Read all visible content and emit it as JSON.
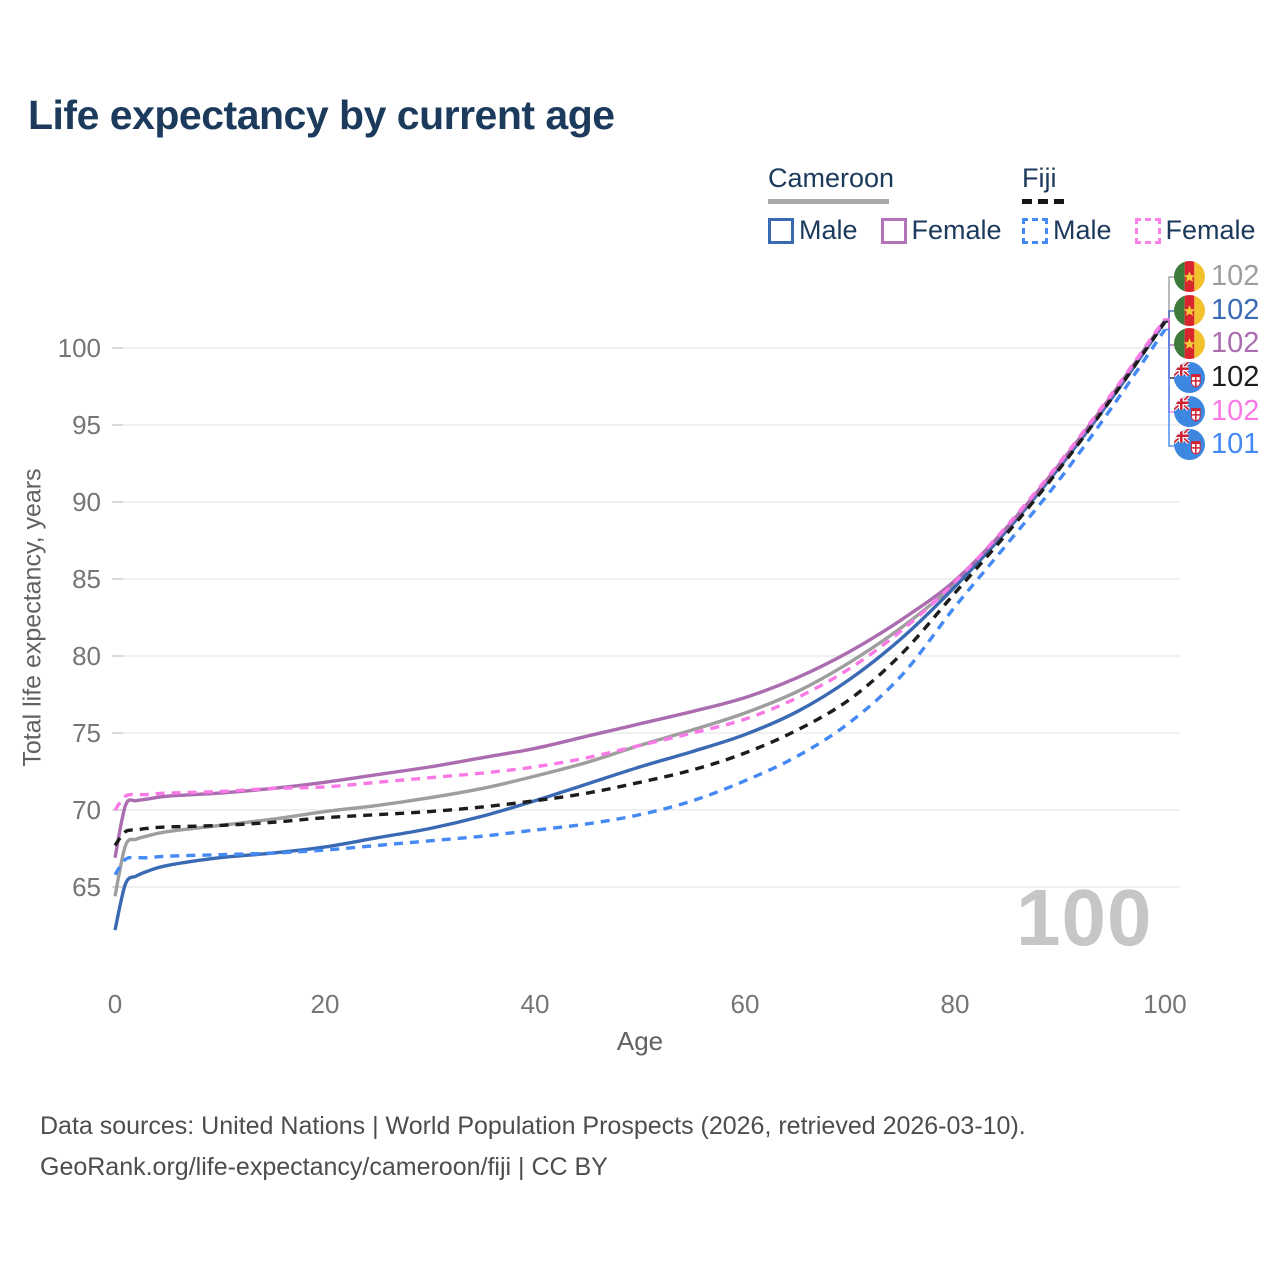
{
  "title": "Life expectancy by current age",
  "legend": {
    "groups": [
      {
        "label": "Cameroon",
        "line_style": "solid",
        "items": [
          {
            "label": "Male",
            "color": "#3b6ab4"
          },
          {
            "label": "Female",
            "color": "#b273bb"
          }
        ]
      },
      {
        "label": "Fiji",
        "line_style": "dashed",
        "items": [
          {
            "label": "Male",
            "color": "#4489f4"
          },
          {
            "label": "Female",
            "color": "#fb80e8"
          }
        ]
      }
    ]
  },
  "chart_data": {
    "type": "line",
    "xlabel": "Age",
    "ylabel": "Total life expectancy, years",
    "xticks": [
      0,
      20,
      40,
      60,
      80,
      100
    ],
    "yticks": [
      65,
      70,
      75,
      80,
      85,
      90,
      95,
      100
    ],
    "xlim": [
      0,
      100
    ],
    "ylim": [
      62,
      103.5
    ],
    "grid": "horizontal",
    "legend_position": "top-right",
    "hover_age_label": "100",
    "ages": [
      0,
      1,
      2,
      3,
      5,
      10,
      15,
      20,
      25,
      30,
      35,
      40,
      45,
      50,
      55,
      60,
      65,
      70,
      75,
      80,
      85,
      90,
      95,
      100
    ],
    "series": [
      {
        "id": "cameroon-total",
        "name": "Cameroon Total",
        "color": "#9e9e9e",
        "dash": "solid",
        "values": [
          64.4,
          67.7,
          68.1,
          68.3,
          68.6,
          69.0,
          69.4,
          69.9,
          70.3,
          70.8,
          71.4,
          72.2,
          73.1,
          74.2,
          75.2,
          76.3,
          77.7,
          79.6,
          81.9,
          84.7,
          88.3,
          92.4,
          96.9,
          101.7
        ]
      },
      {
        "id": "cameroon-male",
        "name": "Cameroon Male",
        "color": "#3b6ab4",
        "dash": "solid",
        "values": [
          62.2,
          65.2,
          65.7,
          66.0,
          66.4,
          66.9,
          67.2,
          67.6,
          68.2,
          68.8,
          69.6,
          70.6,
          71.7,
          72.8,
          73.8,
          74.9,
          76.4,
          78.5,
          81.2,
          84.5,
          88.2,
          92.3,
          96.8,
          101.7
        ]
      },
      {
        "id": "cameroon-female",
        "name": "Cameroon Female",
        "color": "#ab6cb0",
        "dash": "solid",
        "values": [
          66.9,
          70.3,
          70.6,
          70.7,
          70.9,
          71.1,
          71.4,
          71.8,
          72.3,
          72.8,
          73.4,
          74.0,
          74.8,
          75.6,
          76.4,
          77.3,
          78.6,
          80.3,
          82.4,
          84.9,
          88.4,
          92.5,
          97.0,
          101.8
        ]
      },
      {
        "id": "fiji-total",
        "name": "Fiji Total",
        "color": "#1c1c1c",
        "dash": "dashed",
        "values": [
          67.7,
          68.6,
          68.7,
          68.8,
          68.9,
          69.0,
          69.2,
          69.5,
          69.7,
          69.9,
          70.2,
          70.6,
          71.1,
          71.8,
          72.6,
          73.7,
          75.2,
          77.2,
          80.2,
          84.1,
          88.0,
          92.2,
          96.8,
          101.7
        ]
      },
      {
        "id": "fiji-male",
        "name": "Fiji Male",
        "color": "#4489f4",
        "dash": "dashed",
        "values": [
          65.8,
          66.8,
          66.9,
          66.9,
          67.0,
          67.1,
          67.2,
          67.4,
          67.7,
          68.0,
          68.3,
          68.7,
          69.1,
          69.7,
          70.6,
          71.9,
          73.5,
          75.7,
          78.8,
          83.2,
          87.3,
          91.5,
          96.2,
          101.2
        ]
      },
      {
        "id": "fiji-female",
        "name": "Fiji Female",
        "color": "#f97ae6",
        "dash": "dashed",
        "values": [
          70.0,
          70.9,
          71.0,
          71.0,
          71.1,
          71.2,
          71.4,
          71.5,
          71.8,
          72.1,
          72.4,
          72.8,
          73.4,
          74.2,
          75.0,
          75.9,
          77.3,
          79.2,
          81.7,
          84.8,
          88.5,
          92.6,
          97.1,
          101.9
        ]
      }
    ],
    "end_labels": [
      {
        "flag": "cameroon",
        "value": "102",
        "series": 0
      },
      {
        "flag": "cameroon",
        "value": "102",
        "series": 1
      },
      {
        "flag": "cameroon",
        "value": "102",
        "series": 2
      },
      {
        "flag": "fiji",
        "value": "102",
        "series": 3
      },
      {
        "flag": "fiji",
        "value": "102",
        "series": 5
      },
      {
        "flag": "fiji",
        "value": "101",
        "series": 4
      }
    ]
  },
  "footer": {
    "line1": "Data sources: United Nations | World Population Prospects (2026, retrieved 2026-03-10).",
    "line2": "GeoRank.org/life-expectancy/cameroon/fiji | CC BY"
  }
}
